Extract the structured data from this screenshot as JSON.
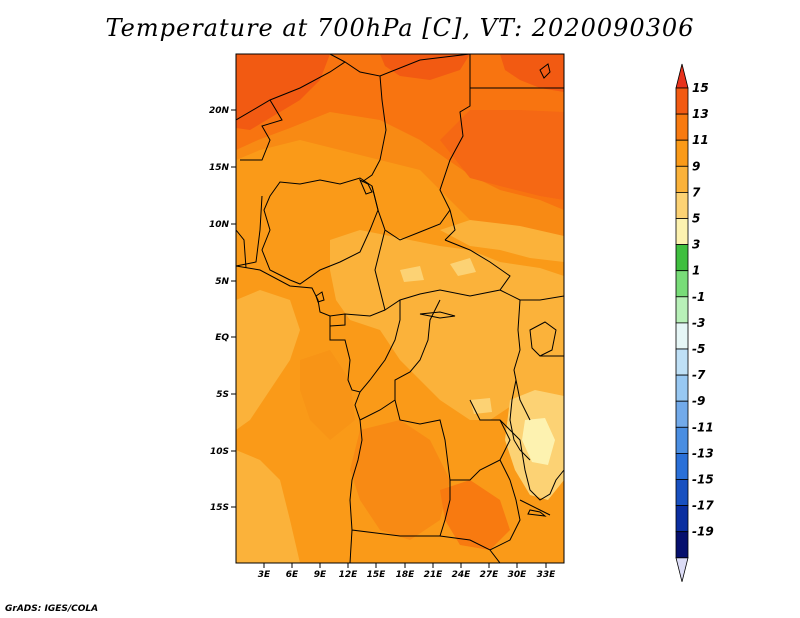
{
  "title": "Temperature at 700hPa [C], VT: 2020090306",
  "credit": "GrADS: IGES/COLA",
  "map": {
    "lat_labels": [
      "20N",
      "15N",
      "10N",
      "5N",
      "EQ",
      "5S",
      "10S",
      "15S"
    ],
    "lon_labels": [
      "3E",
      "6E",
      "9E",
      "12E",
      "15E",
      "18E",
      "21E",
      "24E",
      "27E",
      "30E",
      "33E"
    ]
  },
  "colorbar": {
    "labels": [
      "15",
      "13",
      "11",
      "9",
      "7",
      "5",
      "3",
      "1",
      "-1",
      "-3",
      "-5",
      "-7",
      "-9",
      "-11",
      "-13",
      "-15",
      "-17",
      "-19"
    ],
    "colors": {
      "above": "#e8321c",
      "bands": [
        "#f25a12",
        "#f87a10",
        "#fa9a18",
        "#fbb23a",
        "#fcd274",
        "#fdf2b0",
        "#3fbf3f",
        "#78dc78",
        "#b8f0b8",
        "#e6f6f6",
        "#bfe0f6",
        "#98c8f2",
        "#72aaea",
        "#4a8ee2",
        "#2a70d8",
        "#1850c0",
        "#0a2ea0",
        "#06106e"
      ],
      "below": "#dcdcf6"
    }
  }
}
